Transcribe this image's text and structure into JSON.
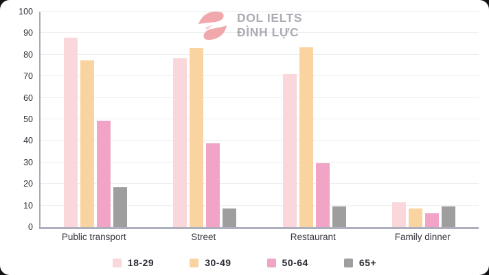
{
  "logo": {
    "line1": "DOL IELTS",
    "line2": "ĐÌNH LỰC",
    "mark_color": "#F0A1A5",
    "text_color": "#A5A5AF"
  },
  "chart_data": {
    "type": "bar",
    "categories": [
      "Public transport",
      "Street",
      "Restaurant",
      "Family dinner"
    ],
    "series": [
      {
        "name": "18-29",
        "color": "#F9D7DA",
        "values": [
          88,
          78.5,
          71,
          11.5
        ]
      },
      {
        "name": "30-49",
        "color": "#FAD4A0",
        "values": [
          77.5,
          83,
          83.5,
          8.5
        ]
      },
      {
        "name": "50-64",
        "color": "#F1A4C5",
        "values": [
          49.5,
          39,
          29.5,
          6.5
        ]
      },
      {
        "name": "65+",
        "color": "#9E9E9E",
        "values": [
          18.5,
          8.5,
          9.5,
          9.5
        ]
      }
    ],
    "title": "",
    "xlabel": "",
    "ylabel": "",
    "ylim": [
      0,
      100
    ],
    "ytick_step": 10,
    "yticks": [
      0,
      10,
      20,
      30,
      40,
      50,
      60,
      70,
      80,
      90,
      100
    ],
    "grid": "horizontal",
    "legend_position": "bottom",
    "axis_color": "#A7AAB6",
    "gridline_color": "#EEEEF2",
    "tick_label_color": "#2E2E38"
  }
}
